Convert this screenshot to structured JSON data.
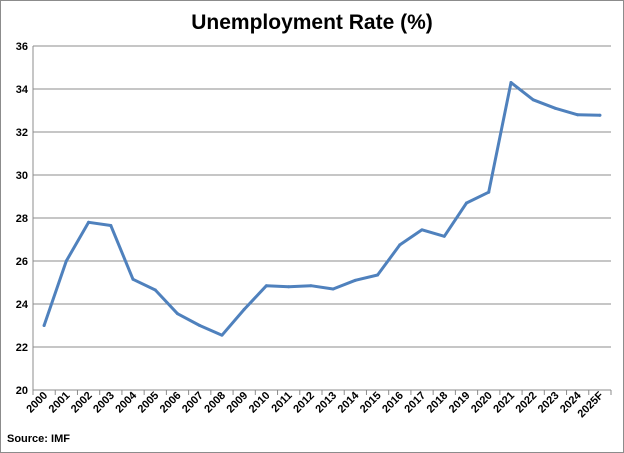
{
  "chart_data": {
    "type": "line",
    "title": "Unemployment Rate (%)",
    "xlabel": "",
    "ylabel": "",
    "categories": [
      "2000",
      "2001",
      "2002",
      "2003",
      "2004",
      "2005",
      "2006",
      "2007",
      "2008",
      "2009",
      "2010",
      "2011",
      "2012",
      "2013",
      "2014",
      "2015",
      "2016",
      "2017",
      "2018",
      "2019",
      "2020",
      "2021",
      "2022",
      "2023",
      "2024",
      "2025F"
    ],
    "series": [
      {
        "values": [
          23.0,
          26.0,
          27.8,
          27.65,
          25.15,
          24.65,
          23.55,
          23.0,
          22.55,
          23.75,
          24.85,
          24.8,
          24.85,
          24.7,
          25.1,
          25.35,
          26.75,
          27.45,
          27.15,
          28.7,
          29.2,
          34.3,
          33.5,
          33.1,
          32.8,
          32.78
        ],
        "color": "#4f81bd"
      }
    ],
    "ylim": [
      20,
      36
    ],
    "yticks": [
      20,
      22,
      24,
      26,
      28,
      30,
      32,
      34,
      36
    ],
    "grid": true,
    "legend": "none",
    "source": "Source: IMF"
  }
}
